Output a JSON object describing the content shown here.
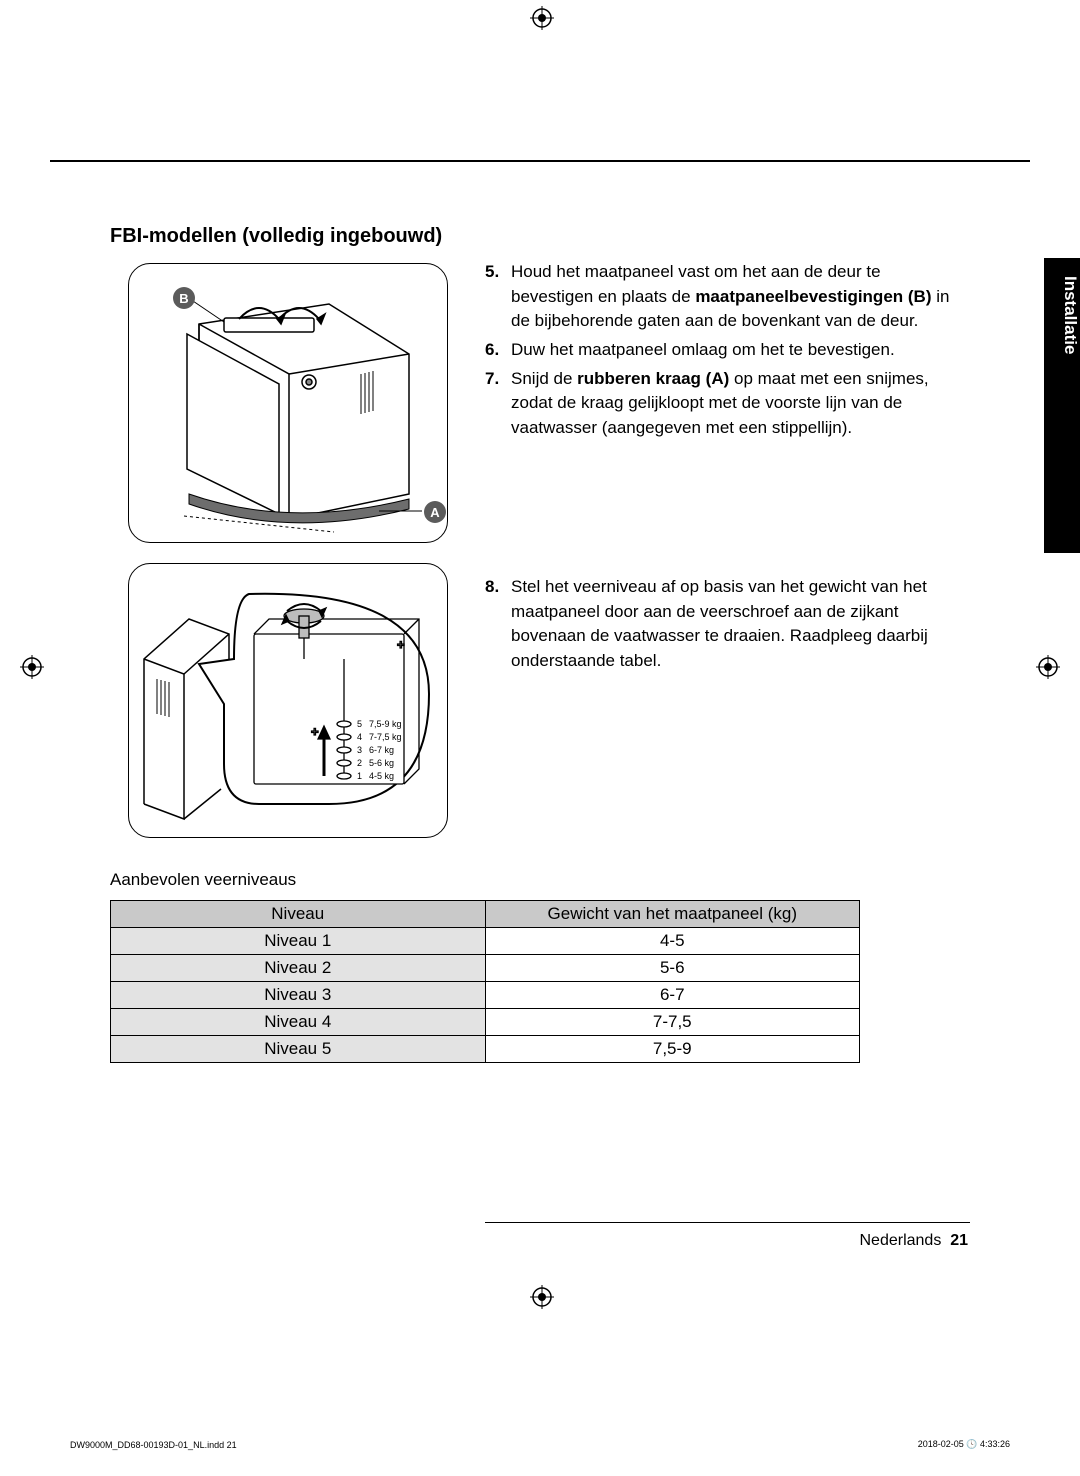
{
  "section_title": "FBI-modellen (volledig ingebouwd)",
  "side_tab": "Installatie",
  "figure1": {
    "label_B": "B",
    "label_A": "A"
  },
  "figure2": {
    "scale": [
      {
        "n": "5",
        "w": "7,5-9 kg"
      },
      {
        "n": "4",
        "w": "7-7,5 kg"
      },
      {
        "n": "3",
        "w": "6-7 kg"
      },
      {
        "n": "2",
        "w": "5-6 kg"
      },
      {
        "n": "1",
        "w": "4-5 kg"
      }
    ],
    "plus": "+"
  },
  "steps_block1": [
    {
      "n": "5.",
      "pre": "Houd het maatpaneel vast om het aan de deur te bevestigen en plaats de ",
      "bold": "maatpaneelbevestigingen (B)",
      "post": " in de bijbehorende gaten aan de bovenkant van de deur."
    },
    {
      "n": "6.",
      "pre": "Duw het maatpaneel omlaag om het te bevestigen.",
      "bold": "",
      "post": ""
    },
    {
      "n": "7.",
      "pre": "Snijd de ",
      "bold": "rubberen kraag (A)",
      "post": " op maat met een snijmes, zodat de kraag gelijkloopt met de voorste lijn van de vaatwasser (aangegeven met een stippellijn)."
    }
  ],
  "steps_block2": [
    {
      "n": "8.",
      "pre": "Stel het veerniveau af op basis van het gewicht van het maatpaneel door aan de veerschroef aan de zijkant bovenaan de vaatwasser te draaien. Raadpleeg daarbij onderstaande tabel.",
      "bold": "",
      "post": ""
    }
  ],
  "table": {
    "caption": "Aanbevolen veerniveaus",
    "columns": [
      "Niveau",
      "Gewicht van het maatpaneel (kg)"
    ],
    "rows": [
      [
        "Niveau 1",
        "4-5"
      ],
      [
        "Niveau 2",
        "5-6"
      ],
      [
        "Niveau 3",
        "6-7"
      ],
      [
        "Niveau 4",
        "7-7,5"
      ],
      [
        "Niveau 5",
        "7,5-9"
      ]
    ],
    "col_widths_pct": [
      50,
      50
    ]
  },
  "footer": {
    "lang": "Nederlands",
    "page": "21"
  },
  "print_meta": {
    "left": "DW9000M_DD68-00193D-01_NL.indd   21",
    "right": "2018-02-05   🕓 4:33:26"
  },
  "colors": {
    "tab_bg": "#000000",
    "header_bg": "#c9c9c9",
    "row_bg": "#e3e3e3",
    "label_bg": "#5b5b5b"
  }
}
